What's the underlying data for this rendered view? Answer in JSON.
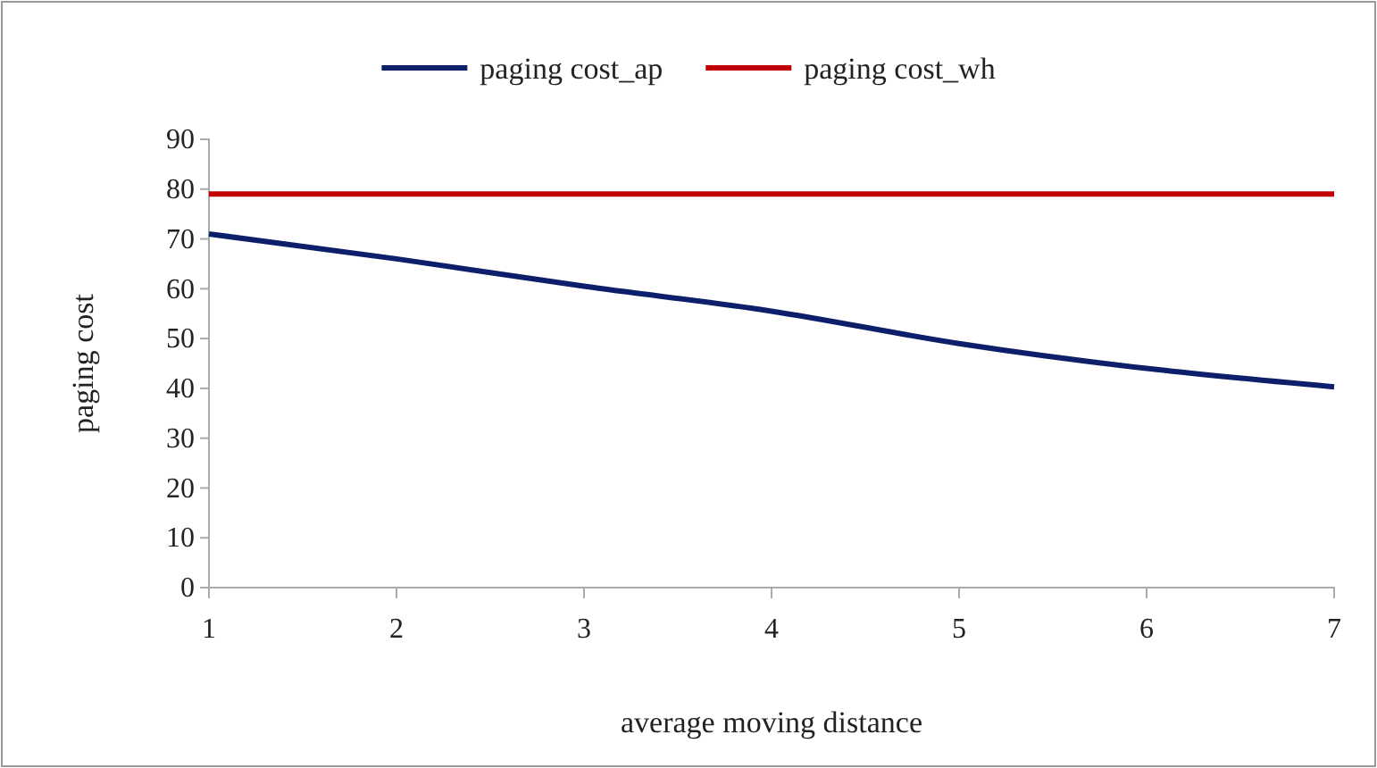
{
  "chart_data": {
    "type": "line",
    "xlabel": "average moving distance",
    "ylabel": "paging cost",
    "x": [
      1,
      2,
      3,
      4,
      5,
      6,
      7
    ],
    "series": [
      {
        "name": "paging cost_ap",
        "color": "#0d1f6b",
        "values": [
          71,
          66,
          60.5,
          55.5,
          49,
          44,
          40.3
        ]
      },
      {
        "name": "paging cost_wh",
        "color": "#c00000",
        "values": [
          79,
          79,
          79,
          79,
          79,
          79,
          79
        ]
      }
    ],
    "xlim": [
      1,
      7
    ],
    "xticks": [
      1,
      2,
      3,
      4,
      5,
      6,
      7
    ],
    "ylim": [
      0,
      90
    ],
    "yticks": [
      0,
      10,
      20,
      30,
      40,
      50,
      60,
      70,
      80,
      90
    ],
    "legend": "top",
    "grid": false,
    "marker": "none",
    "line_style": "solid"
  }
}
